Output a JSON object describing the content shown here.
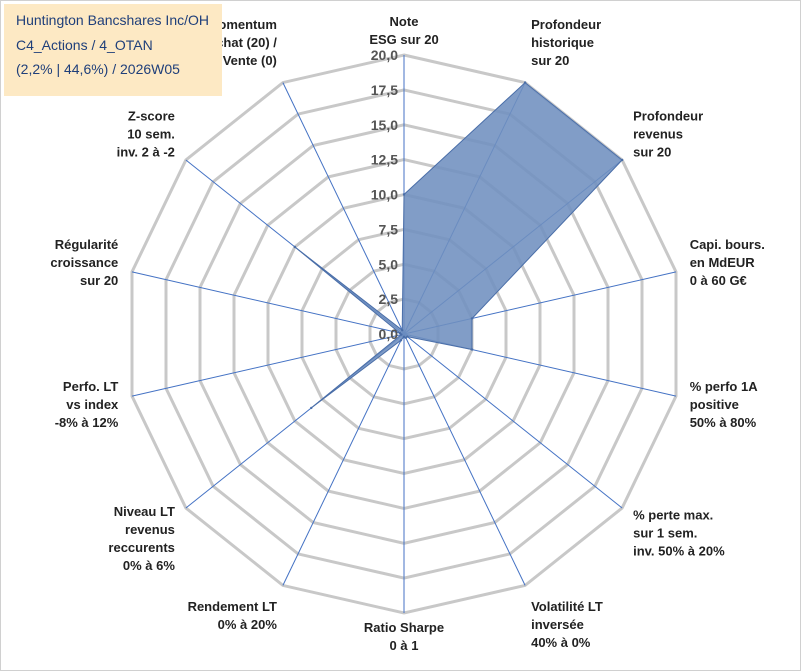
{
  "header": {
    "line1": "Huntington Bancshares Inc/OH",
    "line2": "C4_Actions / 4_OTAN",
    "line3": "(2,2% | 44,6%) / 2026W05"
  },
  "chart_data": {
    "type": "radar",
    "title": "",
    "axes": [
      [
        "Note",
        "ESG sur 20"
      ],
      [
        "Profondeur",
        "historique",
        "sur 20"
      ],
      [
        "Profondeur",
        "revenus",
        "sur 20"
      ],
      [
        "Capi. bours.",
        "en MdEUR",
        "0 à 60 G€"
      ],
      [
        "% perfo 1A",
        "positive",
        "50% à 80%"
      ],
      [
        "% perte max.",
        "sur 1 sem.",
        "inv. 50% à 20%"
      ],
      [
        "Volatilité LT",
        "inversée",
        "40% à 0%"
      ],
      [
        "Ratio Sharpe",
        "0 à 1"
      ],
      [
        "Rendement LT",
        "0% à 20%"
      ],
      [
        "Niveau LT",
        "revenus",
        "reccurents",
        "0% à 6%"
      ],
      [
        "Perfo. LT",
        "vs index",
        "-8% à 12%"
      ],
      [
        "Régularité",
        "croissance",
        "sur 20"
      ],
      [
        "Z-score",
        "10 sem.",
        "inv. 2 à -2"
      ],
      [
        "Momentum",
        "Achat (20) /",
        "Vente (0)"
      ]
    ],
    "rlim": [
      0,
      20
    ],
    "ticks": [
      "0,0",
      "2,5",
      "5,0",
      "7,5",
      "10,0",
      "12,5",
      "15,0",
      "17,5",
      "20,0"
    ],
    "series": [
      {
        "values": [
          10,
          20,
          20,
          5,
          5,
          0.3,
          0.3,
          0.2,
          0.5,
          8.5,
          0.2,
          0.3,
          10,
          0.3
        ]
      }
    ],
    "fill_color": "#6f8fbf",
    "line_color": "#4a6ea8",
    "grid_color": "#c8c8c8",
    "axis_color": "#4472c4"
  }
}
